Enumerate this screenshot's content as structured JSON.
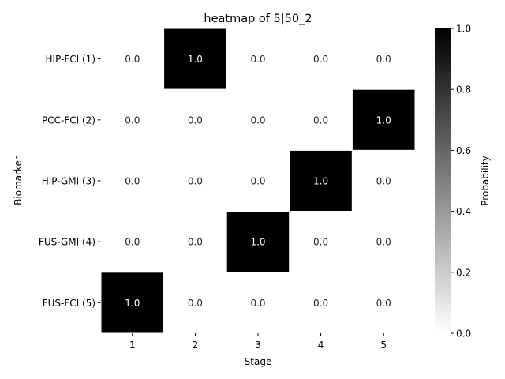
{
  "chart_data": {
    "type": "heatmap",
    "title": "heatmap of 5|50_2",
    "xlabel": "Stage",
    "ylabel": "Biomarker",
    "x_categories": [
      "1",
      "2",
      "3",
      "4",
      "5"
    ],
    "y_categories": [
      "HIP-FCI (1)",
      "PCC-FCI (2)",
      "HIP-GMI (3)",
      "FUS-GMI (4)",
      "FUS-FCI (5)"
    ],
    "values": [
      [
        0.0,
        1.0,
        0.0,
        0.0,
        0.0
      ],
      [
        0.0,
        0.0,
        0.0,
        0.0,
        1.0
      ],
      [
        0.0,
        0.0,
        0.0,
        1.0,
        0.0
      ],
      [
        0.0,
        0.0,
        1.0,
        0.0,
        0.0
      ],
      [
        1.0,
        0.0,
        0.0,
        0.0,
        0.0
      ]
    ],
    "colorbar": {
      "label": "Probability",
      "range": [
        0.0,
        1.0
      ],
      "ticks": [
        "0.0",
        "0.2",
        "0.4",
        "0.6",
        "0.8",
        "1.0"
      ]
    },
    "colormap": {
      "low": "#ffffff",
      "high": "#000000"
    },
    "cell_border_color": "#ffffff"
  }
}
